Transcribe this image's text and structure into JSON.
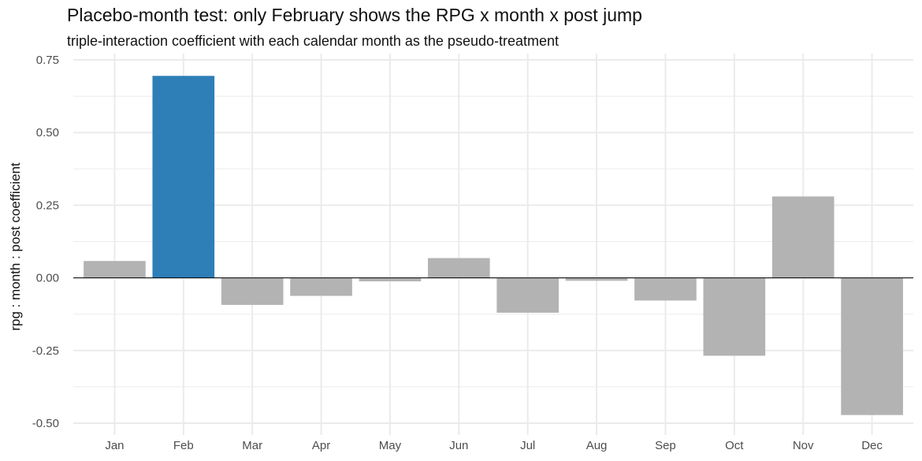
{
  "chart_data": {
    "type": "bar",
    "title": "Placebo-month test: only February shows the RPG x month x post jump",
    "subtitle": "triple-interaction coefficient with each calendar month as the pseudo-treatment",
    "xlabel": "",
    "ylabel": "rpg : month : post coefficient",
    "categories": [
      "Jan",
      "Feb",
      "Mar",
      "Apr",
      "May",
      "Jun",
      "Jul",
      "Aug",
      "Sep",
      "Oct",
      "Nov",
      "Dec"
    ],
    "values": [
      0.058,
      0.695,
      -0.093,
      -0.062,
      -0.012,
      0.068,
      -0.12,
      -0.01,
      -0.078,
      -0.268,
      0.28,
      -0.472
    ],
    "highlight_category": "Feb",
    "ylim": [
      -0.5,
      0.75
    ],
    "yticks": [
      "0.75",
      "0.50",
      "0.25",
      "0.00",
      "-0.25",
      "-0.50"
    ],
    "grid": true,
    "colors": {
      "highlight": "#2e7eb8",
      "other": "#b3b3b3",
      "grid": "#ebebeb",
      "zero_line": "#000000"
    }
  }
}
